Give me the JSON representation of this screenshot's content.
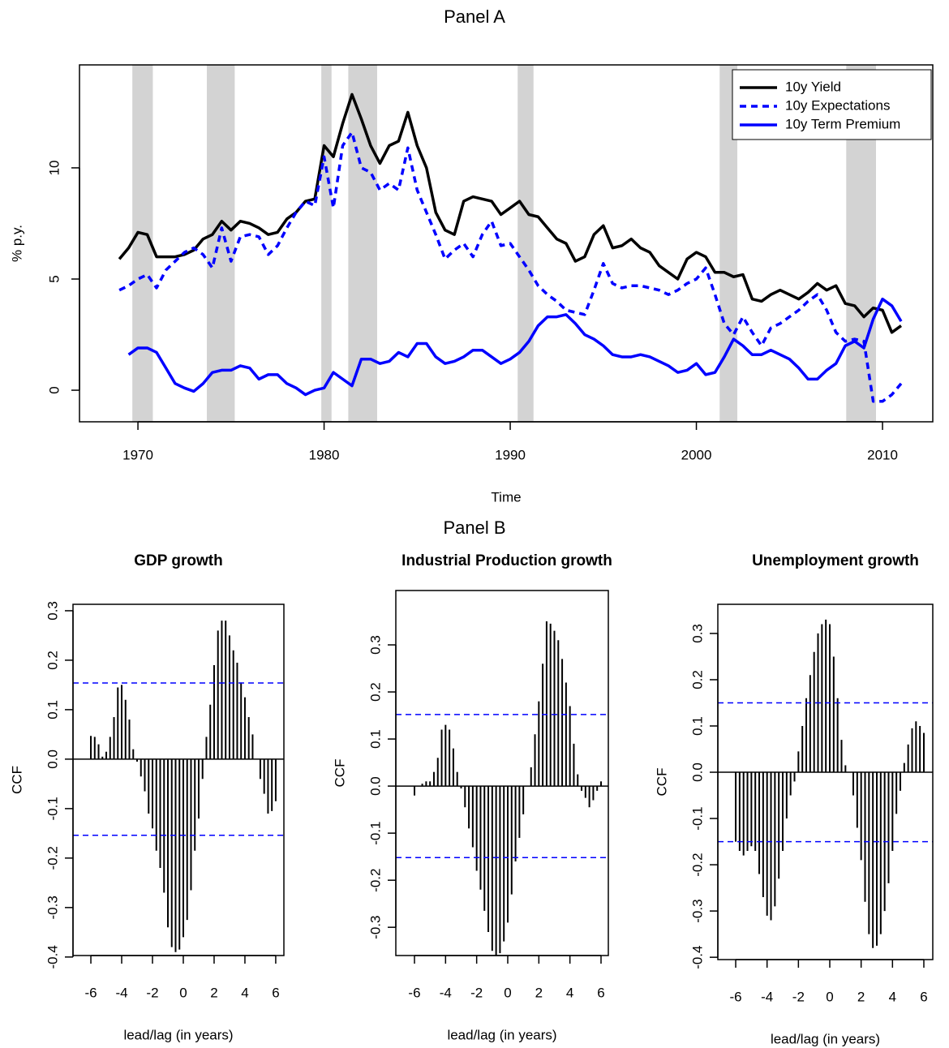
{
  "chart_data": [
    {
      "type": "line",
      "title": "Panel A",
      "xlabel": "Time",
      "ylabel": "% p.y.",
      "x": [
        1969,
        1969.5,
        1970,
        1970.5,
        1971,
        1971.5,
        1972,
        1972.5,
        1973,
        1973.5,
        1974,
        1974.5,
        1975,
        1975.5,
        1976,
        1976.5,
        1977,
        1977.5,
        1978,
        1978.5,
        1979,
        1979.5,
        1980,
        1980.5,
        1981,
        1981.5,
        1982,
        1982.5,
        1983,
        1983.5,
        1984,
        1984.5,
        1985,
        1985.5,
        1986,
        1986.5,
        1987,
        1987.5,
        1988,
        1988.5,
        1989,
        1989.5,
        1990,
        1990.5,
        1991,
        1991.5,
        1992,
        1992.5,
        1993,
        1993.5,
        1994,
        1994.5,
        1995,
        1995.5,
        1996,
        1996.5,
        1997,
        1997.5,
        1998,
        1998.5,
        1999,
        1999.5,
        2000,
        2000.5,
        2001,
        2001.5,
        2002,
        2002.5,
        2003,
        2003.5,
        2004,
        2004.5,
        2005,
        2005.5,
        2006,
        2006.5,
        2007,
        2007.5,
        2008,
        2008.5,
        2009,
        2009.5,
        2010,
        2010.5,
        2011
      ],
      "series": [
        {
          "name": "10y Yield",
          "color": "#000000",
          "style": "solid",
          "values": [
            5.9,
            6.4,
            7.1,
            7.0,
            6.0,
            6.0,
            6.0,
            6.1,
            6.3,
            6.8,
            7.0,
            7.6,
            7.2,
            7.6,
            7.5,
            7.3,
            7.0,
            7.1,
            7.7,
            8.0,
            8.5,
            8.6,
            11.0,
            10.5,
            12.0,
            13.3,
            12.2,
            11.0,
            10.2,
            11.0,
            11.2,
            12.5,
            11.0,
            10.0,
            8.0,
            7.2,
            7.0,
            8.5,
            8.7,
            8.6,
            8.5,
            7.9,
            8.2,
            8.5,
            7.9,
            7.8,
            7.3,
            6.8,
            6.6,
            5.8,
            6.0,
            7.0,
            7.4,
            6.4,
            6.5,
            6.8,
            6.4,
            6.2,
            5.6,
            5.3,
            5.0,
            5.9,
            6.2,
            6.0,
            5.3,
            5.3,
            5.1,
            5.2,
            4.1,
            4.0,
            4.3,
            4.5,
            4.3,
            4.1,
            4.4,
            4.8,
            4.5,
            4.7,
            3.9,
            3.8,
            3.3,
            3.7,
            3.6,
            2.6,
            2.9
          ]
        },
        {
          "name": "10y Expectations",
          "color": "#0000ff",
          "style": "dashed",
          "values": [
            4.5,
            4.7,
            5.0,
            5.2,
            4.6,
            5.4,
            5.8,
            6.2,
            6.4,
            6.1,
            5.5,
            7.3,
            5.8,
            6.9,
            7.0,
            6.9,
            6.1,
            6.5,
            7.3,
            8.0,
            8.5,
            8.3,
            10.5,
            8.2,
            11.0,
            11.6,
            10.0,
            9.8,
            9.0,
            9.3,
            9.0,
            10.9,
            9.0,
            8.0,
            7.0,
            5.9,
            6.3,
            6.6,
            6.0,
            7.0,
            7.6,
            6.5,
            6.6,
            6.0,
            5.4,
            4.7,
            4.3,
            4.0,
            3.6,
            3.5,
            3.4,
            4.5,
            5.7,
            4.8,
            4.6,
            4.7,
            4.7,
            4.6,
            4.5,
            4.3,
            4.5,
            4.8,
            5.0,
            5.5,
            4.3,
            3.0,
            2.5,
            3.3,
            2.6,
            2.0,
            2.8,
            3.0,
            3.3,
            3.6,
            4.0,
            4.3,
            3.6,
            2.6,
            2.2,
            2.3,
            2.2,
            -0.5,
            -0.5,
            -0.2,
            0.3
          ]
        },
        {
          "name": "10y Term Premium",
          "color": "#0000ff",
          "style": "solid",
          "values": [
            null,
            1.6,
            1.9,
            1.9,
            1.7,
            1.0,
            0.3,
            0.1,
            -0.05,
            0.3,
            0.8,
            0.9,
            0.9,
            1.1,
            1.0,
            0.5,
            0.7,
            0.7,
            0.3,
            0.1,
            -0.2,
            0.0,
            0.1,
            0.8,
            0.5,
            0.2,
            1.4,
            1.4,
            1.2,
            1.3,
            1.7,
            1.5,
            2.1,
            2.1,
            1.5,
            1.2,
            1.3,
            1.5,
            1.8,
            1.8,
            1.5,
            1.2,
            1.4,
            1.7,
            2.2,
            2.9,
            3.3,
            3.3,
            3.4,
            3.0,
            2.5,
            2.3,
            2.0,
            1.6,
            1.5,
            1.5,
            1.6,
            1.5,
            1.3,
            1.1,
            0.8,
            0.9,
            1.2,
            0.7,
            0.8,
            1.5,
            2.3,
            2.0,
            1.6,
            1.6,
            1.8,
            1.6,
            1.4,
            1.0,
            0.5,
            0.5,
            0.9,
            1.2,
            2.0,
            2.2,
            1.9,
            3.2,
            4.1,
            3.8,
            3.1
          ]
        }
      ],
      "recessions": [
        [
          1969.7,
          1970.8
        ],
        [
          1973.7,
          1975.2
        ],
        [
          1979.85,
          1980.4
        ],
        [
          1981.3,
          1982.85
        ],
        [
          1990.4,
          1991.25
        ],
        [
          2001.25,
          2002.2
        ],
        [
          2008.05,
          2009.65
        ]
      ],
      "recession_color": "#d3d3d3",
      "xlim": [
        1966.86,
        2012.7
      ],
      "ylim": [
        -1.42,
        14.63
      ],
      "xticks": [
        1970,
        1980,
        1990,
        2000,
        2010
      ],
      "yticks": [
        0,
        5,
        10
      ],
      "legend": "topright"
    },
    {
      "type": "ccf",
      "heading": "Panel B",
      "title": "GDP growth",
      "xlabel": "lead/lag (in years)",
      "ylabel": "CCF",
      "color": "#000000",
      "ci_color": "#0000ff",
      "x": [
        -6,
        -5.75,
        -5.5,
        -5.25,
        -5,
        -4.75,
        -4.5,
        -4.25,
        -4,
        -3.75,
        -3.5,
        -3.25,
        -3,
        -2.75,
        -2.5,
        -2.25,
        -2,
        -1.75,
        -1.5,
        -1.25,
        -1,
        -0.75,
        -0.5,
        -0.25,
        0,
        0.25,
        0.5,
        0.75,
        1,
        1.25,
        1.5,
        1.75,
        2,
        2.25,
        2.5,
        2.75,
        3,
        3.25,
        3.5,
        3.75,
        4,
        4.25,
        4.5,
        4.75,
        5,
        5.25,
        5.5,
        5.75,
        6
      ],
      "values": [
        0.047,
        0.045,
        0.03,
        0.005,
        0.015,
        0.045,
        0.085,
        0.145,
        0.15,
        0.12,
        0.08,
        0.02,
        -0.005,
        -0.035,
        -0.065,
        -0.11,
        -0.14,
        -0.185,
        -0.22,
        -0.27,
        -0.34,
        -0.38,
        -0.39,
        -0.385,
        -0.36,
        -0.325,
        -0.265,
        -0.185,
        -0.12,
        -0.04,
        0.045,
        0.11,
        0.19,
        0.26,
        0.28,
        0.28,
        0.25,
        0.22,
        0.195,
        0.155,
        0.125,
        0.085,
        0.05,
        0.0,
        -0.04,
        -0.07,
        -0.11,
        -0.105,
        -0.085
      ],
      "ci_lines": [
        0.154,
        -0.154
      ],
      "xlim": [
        -7.16,
        6.53
      ],
      "ylim": [
        -0.397,
        0.313
      ],
      "xticks": [
        -6,
        -4,
        -2,
        0,
        2,
        4,
        6
      ],
      "yticks": [
        -0.4,
        -0.3,
        -0.2,
        -0.1,
        {
          "value": 0,
          "label": "0.0"
        },
        0.1,
        0.2,
        0.3
      ]
    },
    {
      "type": "ccf",
      "title": "Industrial Production growth",
      "xlabel": "lead/lag (in years)",
      "ylabel": "CCF",
      "color": "#000000",
      "ci_color": "#0000ff",
      "x": [
        -6,
        -5.75,
        -5.5,
        -5.25,
        -5,
        -4.75,
        -4.5,
        -4.25,
        -4,
        -3.75,
        -3.5,
        -3.25,
        -3,
        -2.75,
        -2.5,
        -2.25,
        -2,
        -1.75,
        -1.5,
        -1.25,
        -1,
        -0.75,
        -0.5,
        -0.25,
        0,
        0.25,
        0.5,
        0.75,
        1,
        1.25,
        1.5,
        1.75,
        2,
        2.25,
        2.5,
        2.75,
        3,
        3.25,
        3.5,
        3.75,
        4,
        4.25,
        4.5,
        4.75,
        5,
        5.25,
        5.5,
        5.75,
        6
      ],
      "values": [
        -0.02,
        0,
        0.005,
        0.01,
        0.01,
        0.03,
        0.06,
        0.12,
        0.13,
        0.12,
        0.08,
        0.03,
        -0.005,
        -0.045,
        -0.09,
        -0.13,
        -0.18,
        -0.22,
        -0.265,
        -0.31,
        -0.35,
        -0.36,
        -0.355,
        -0.33,
        -0.29,
        -0.23,
        -0.16,
        -0.11,
        -0.06,
        0,
        0.04,
        0.11,
        0.18,
        0.26,
        0.35,
        0.345,
        0.33,
        0.31,
        0.27,
        0.22,
        0.17,
        0.09,
        0.025,
        -0.01,
        -0.025,
        -0.045,
        -0.03,
        -0.01,
        0.01
      ],
      "ci_lines": [
        0.152,
        -0.152
      ],
      "xlim": [
        -7.2,
        6.47
      ],
      "ylim": [
        -0.36,
        0.4155
      ],
      "xticks": [
        -6,
        -4,
        -2,
        0,
        2,
        4,
        6
      ],
      "yticks": [
        -0.3,
        -0.2,
        -0.1,
        {
          "value": 0,
          "label": "0.0"
        },
        0.1,
        0.2,
        0.3
      ]
    },
    {
      "type": "ccf",
      "title": "Unemployment growth",
      "xlabel": "lead/lag (in years)",
      "ylabel": "CCF",
      "color": "#000000",
      "ci_color": "#0000ff",
      "x": [
        -6,
        -5.75,
        -5.5,
        -5.25,
        -5,
        -4.75,
        -4.5,
        -4.25,
        -4,
        -3.75,
        -3.5,
        -3.25,
        -3,
        -2.75,
        -2.5,
        -2.25,
        -2,
        -1.75,
        -1.5,
        -1.25,
        -1,
        -0.75,
        -0.5,
        -0.25,
        0,
        0.25,
        0.5,
        0.75,
        1,
        1.25,
        1.5,
        1.75,
        2,
        2.25,
        2.5,
        2.75,
        3,
        3.25,
        3.5,
        3.75,
        4,
        4.25,
        4.5,
        4.75,
        5,
        5.25,
        5.5,
        5.75,
        6
      ],
      "values": [
        -0.15,
        -0.17,
        -0.18,
        -0.17,
        -0.16,
        -0.17,
        -0.22,
        -0.27,
        -0.31,
        -0.32,
        -0.29,
        -0.23,
        -0.17,
        -0.1,
        -0.05,
        -0.02,
        0.045,
        0.1,
        0.16,
        0.21,
        0.26,
        0.3,
        0.32,
        0.33,
        0.32,
        0.25,
        0.16,
        0.07,
        0.015,
        0,
        -0.05,
        -0.12,
        -0.19,
        -0.28,
        -0.35,
        -0.38,
        -0.375,
        -0.35,
        -0.3,
        -0.24,
        -0.17,
        -0.09,
        -0.04,
        0.02,
        0.06,
        0.095,
        0.11,
        0.1,
        0.085
      ],
      "ci_lines": [
        0.15,
        -0.15
      ],
      "xlim": [
        -7.14,
        6.57
      ],
      "ylim": [
        -0.405,
        0.363
      ],
      "xticks": [
        -6,
        -4,
        -2,
        0,
        2,
        4,
        6
      ],
      "yticks": [
        -0.4,
        -0.3,
        -0.2,
        -0.1,
        {
          "value": 0,
          "label": "0.0"
        },
        0.1,
        0.2,
        0.3
      ]
    }
  ]
}
